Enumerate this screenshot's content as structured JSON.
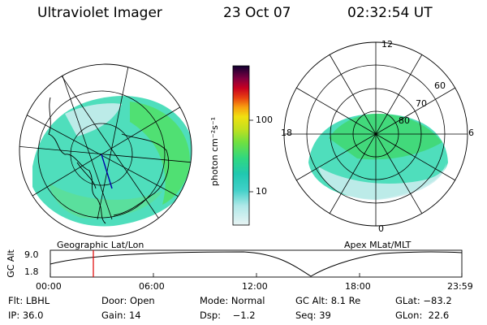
{
  "header": {
    "title": "Ultraviolet Imager",
    "date": "23 Oct 07",
    "time": "02:32:54 UT"
  },
  "colorbar": {
    "unit_label": "photon cm⁻²s⁻¹",
    "ticks": [
      "100",
      "10"
    ],
    "colors": [
      "#e4f0f0",
      "#b8e8e8",
      "#60d8d0",
      "#20c8b8",
      "#30d880",
      "#60e040",
      "#a0e020",
      "#e0e010",
      "#f8c010",
      "#f08010",
      "#e02010",
      "#c00020",
      "#800040",
      "#400060",
      "#100030"
    ]
  },
  "left_map": {
    "caption": "Geographic Lat/Lon"
  },
  "right_map": {
    "caption": "Apex MLat/MLT",
    "mlt_labels": {
      "top": "12",
      "left": "18",
      "right": "6",
      "bottom": "0"
    },
    "lat_labels": [
      "60",
      "70",
      "80"
    ]
  },
  "altitude_plot": {
    "ylabel": "GC Alt",
    "yticks": [
      "9.0",
      "1.8"
    ],
    "xticks": [
      "00:00",
      "06:00",
      "12:00",
      "18:00",
      "23:59"
    ],
    "marker_color": "#e00000"
  },
  "info": {
    "row1": [
      "Flt: LBHL",
      "Door: Open",
      "Mode: Normal",
      "GC Alt: 8.1 Re",
      "GLat: −83.2"
    ],
    "row2": [
      "IP: 36.0",
      "Gain: 14",
      "Dsp:    −1.2",
      "Seq: 39",
      "GLon:  22.6"
    ]
  }
}
